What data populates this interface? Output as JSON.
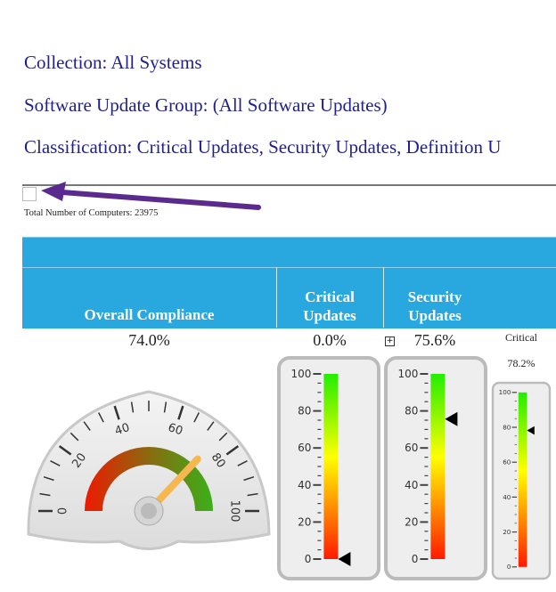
{
  "filters": {
    "collection": "Collection: All Systems",
    "update_group": "Software Update Group: (All Software Updates)",
    "classification": "Classification: Critical Updates, Security Updates, Definition U"
  },
  "total_computers": "Total Number of Computers: 23975",
  "annotation": {
    "arrow_color": "#5b2a8f"
  },
  "table": {
    "header_color": "#29a8e0",
    "columns": [
      {
        "label": "Overall Compliance",
        "value": "74.0%"
      },
      {
        "label_line1": "Critical",
        "label_line2": "Updates",
        "value": "0.0%"
      },
      {
        "label_line1": "Security",
        "label_line2": "Updates",
        "value": "75.6%",
        "expand_icon": "plus-box-icon"
      },
      {
        "label": "Critical",
        "value": "78.2%"
      }
    ]
  },
  "gauges": {
    "overall": {
      "value": 74.0,
      "min": 0,
      "max": 100,
      "ticks": [
        "0",
        "20",
        "40",
        "60",
        "80",
        "100"
      ]
    },
    "critical": {
      "value": 0.0,
      "ticks": [
        "0",
        "20",
        "40",
        "60",
        "80",
        "100"
      ]
    },
    "security": {
      "value": 75.6,
      "ticks": [
        "0",
        "20",
        "40",
        "60",
        "80",
        "100"
      ]
    },
    "critical_small": {
      "value": 78.2,
      "ticks": [
        "0",
        "20",
        "40",
        "60",
        "80",
        "100"
      ]
    }
  }
}
